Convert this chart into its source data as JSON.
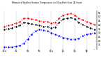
{
  "title": "Milwaukee Weather Outdoor Temperature (vs) Dew Point (Last 24 Hours)",
  "bg_color": "#ffffff",
  "grid_color": "#888888",
  "temp_color": "#ff0000",
  "dew_color": "#0000ff",
  "apparent_color": "#000000",
  "ylim": [
    10,
    58
  ],
  "yticks": [
    15,
    20,
    25,
    30,
    35,
    40,
    45,
    50,
    55
  ],
  "hours": [
    0,
    1,
    2,
    3,
    4,
    5,
    6,
    7,
    8,
    9,
    10,
    11,
    12,
    13,
    14,
    15,
    16,
    17,
    18,
    19,
    20,
    21,
    22,
    23
  ],
  "temp": [
    38,
    39,
    40,
    42,
    44,
    48,
    48,
    47,
    46,
    45,
    44,
    44,
    42,
    43,
    48,
    52,
    53,
    54,
    52,
    48,
    46,
    44,
    42,
    40
  ],
  "dew": [
    12,
    12,
    12,
    13,
    14,
    17,
    22,
    28,
    32,
    34,
    33,
    32,
    30,
    28,
    26,
    24,
    23,
    22,
    22,
    23,
    26,
    28,
    29,
    30
  ],
  "apparent": [
    34,
    35,
    36,
    38,
    39,
    43,
    42,
    41,
    40,
    39,
    38,
    38,
    36,
    37,
    43,
    47,
    48,
    49,
    47,
    43,
    40,
    38,
    36,
    34
  ],
  "xtick_positions": [
    0,
    3,
    6,
    9,
    12,
    15,
    18,
    21,
    23
  ],
  "xtick_labels": [
    "12a",
    "3a",
    "6a",
    "9a",
    "12p",
    "3p",
    "6p",
    "9p",
    ""
  ],
  "vgrid_positions": [
    0,
    3,
    6,
    9,
    12,
    15,
    18,
    21
  ]
}
